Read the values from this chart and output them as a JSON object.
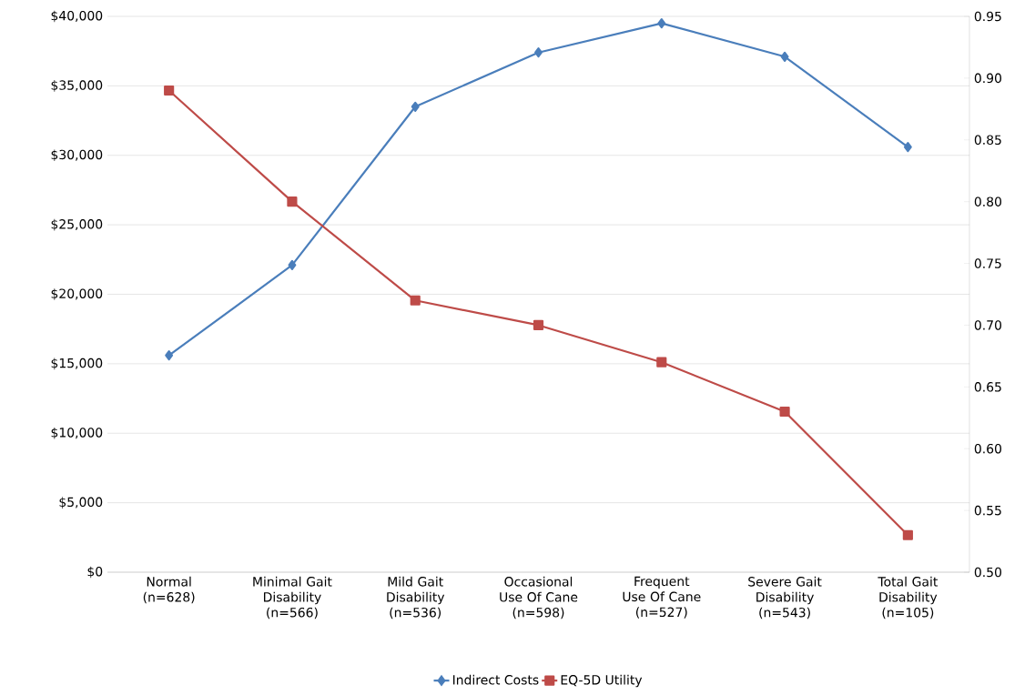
{
  "chart_data": {
    "type": "line",
    "categories": [
      "Normal (n=628)",
      "Minimal Gait Disability (n=566)",
      "Mild Gait Disability (n=536)",
      "Occasional Use Of Cane (n=598)",
      "Frequent Use Of Cane (n=527)",
      "Severe Gait Disability (n=543)",
      "Total Gait Disability (n=105)"
    ],
    "series": [
      {
        "name": "Indirect Costs",
        "color": "#4a7ebb",
        "marker": "diamond",
        "values": [
          15600,
          22100,
          33500,
          37400,
          39500,
          37100,
          30600
        ]
      },
      {
        "name": "EQ-5D Utility",
        "color": "#be4b48",
        "marker": "square",
        "axis": "y2",
        "values": [
          0.89,
          0.8,
          0.72,
          0.7,
          0.67,
          0.63,
          0.53
        ]
      }
    ],
    "ylim": [
      0,
      40000
    ],
    "yticks": [
      {
        "value": 0,
        "label": "$0"
      },
      {
        "value": 5000,
        "label": "$5,000"
      },
      {
        "value": 10000,
        "label": "$10,000"
      },
      {
        "value": 15000,
        "label": "$15,000"
      },
      {
        "value": 20000,
        "label": "$20,000"
      },
      {
        "value": 25000,
        "label": "$25,000"
      },
      {
        "value": 30000,
        "label": "$30,000"
      },
      {
        "value": 35000,
        "label": "$35,000"
      },
      {
        "value": 40000,
        "label": "$40,000"
      }
    ],
    "y2lim": [
      0.5,
      0.95
    ],
    "y2ticks": [
      {
        "value": 0.5,
        "label": "0.50"
      },
      {
        "value": 0.55,
        "label": "0.55"
      },
      {
        "value": 0.6,
        "label": "0.60"
      },
      {
        "value": 0.65,
        "label": "0.65"
      },
      {
        "value": 0.7,
        "label": "0.70"
      },
      {
        "value": 0.75,
        "label": "0.75"
      },
      {
        "value": 0.8,
        "label": "0.80"
      },
      {
        "value": 0.85,
        "label": "0.85"
      },
      {
        "value": 0.9,
        "label": "0.90"
      },
      {
        "value": 0.95,
        "label": "0.95"
      }
    ],
    "grid": "y",
    "legend": "bottom",
    "line_style": "solid"
  }
}
